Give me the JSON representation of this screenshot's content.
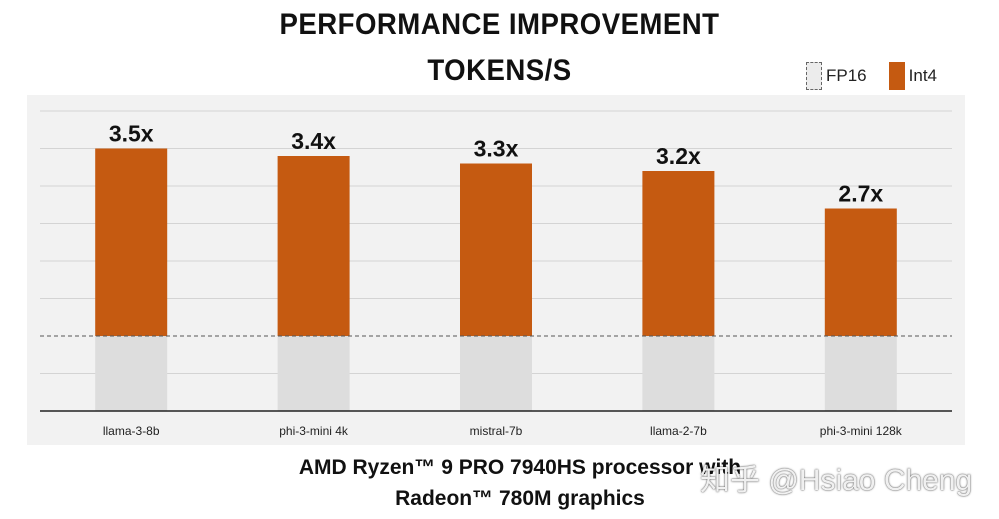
{
  "title_line1": "PERFORMANCE IMPROVEMENT",
  "title_line2": "TOKENS/S",
  "legend": [
    {
      "label": "FP16",
      "color": "#ececec"
    },
    {
      "label": "Int4",
      "color": "#c55a11"
    }
  ],
  "footer_line1": "AMD Ryzen™ 9 PRO 7940HS processor with",
  "footer_line2": "Radeon™ 780M graphics",
  "watermark": "知乎 @Hsiao Cheng",
  "chart_data": {
    "type": "bar",
    "categories": [
      "llama-3-8b",
      "phi-3-mini 4k",
      "mistral-7b",
      "llama-2-7b",
      "phi-3-mini 128k"
    ],
    "series": [
      {
        "name": "FP16",
        "values": [
          1,
          1,
          1,
          1,
          1
        ],
        "color": "#dddddd"
      },
      {
        "name": "Int4",
        "values": [
          3.5,
          3.4,
          3.3,
          3.2,
          2.7
        ],
        "color": "#c55a11"
      }
    ],
    "data_labels": [
      "3.5x",
      "3.4x",
      "3.3x",
      "3.2x",
      "2.7x"
    ],
    "ylim": [
      0,
      4
    ],
    "baseline": 1,
    "grid": true,
    "legend_position": "top-right"
  }
}
